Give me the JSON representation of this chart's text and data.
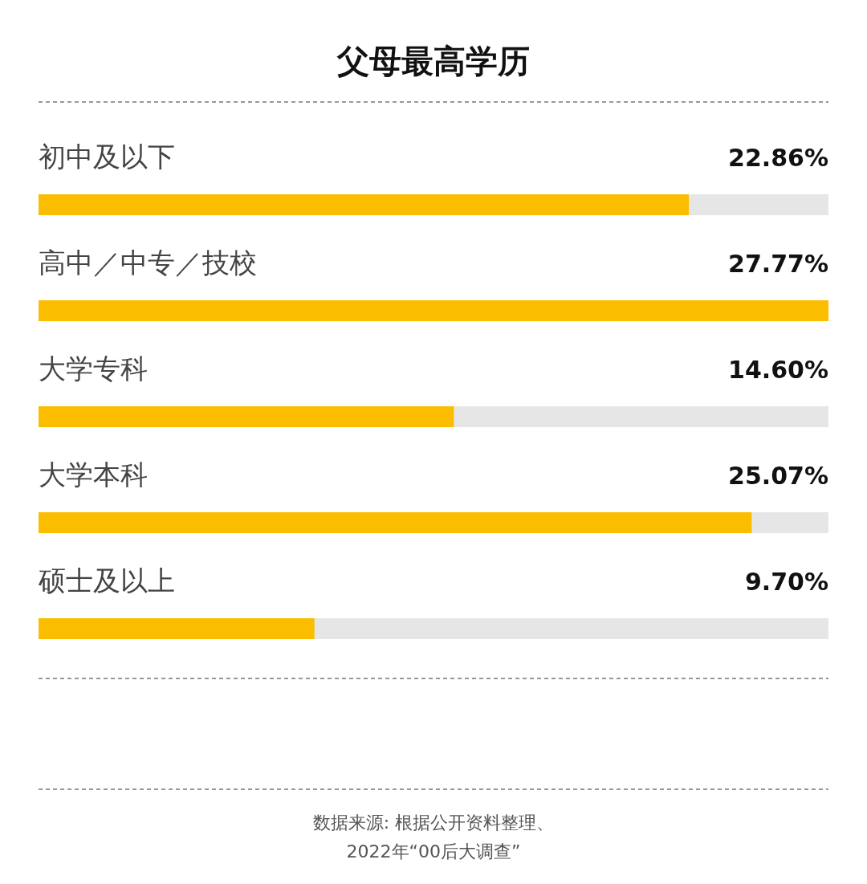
{
  "chart_data": {
    "type": "bar",
    "orientation": "horizontal",
    "title": "父母最高学历",
    "categories": [
      "初中及以下",
      "高中／中专／技校",
      "大学专科",
      "大学本科",
      "硕士及以上"
    ],
    "values": [
      22.86,
      27.77,
      14.6,
      25.07,
      9.7
    ],
    "value_labels": [
      "22.86%",
      "27.77%",
      "14.60%",
      "25.07%",
      "9.70%"
    ],
    "color": "#fbbd00",
    "xlim": [
      0,
      27.77
    ],
    "annotations": [
      "数据来源: 根据公开资料整理、",
      "2022年“00后大调查”"
    ]
  }
}
